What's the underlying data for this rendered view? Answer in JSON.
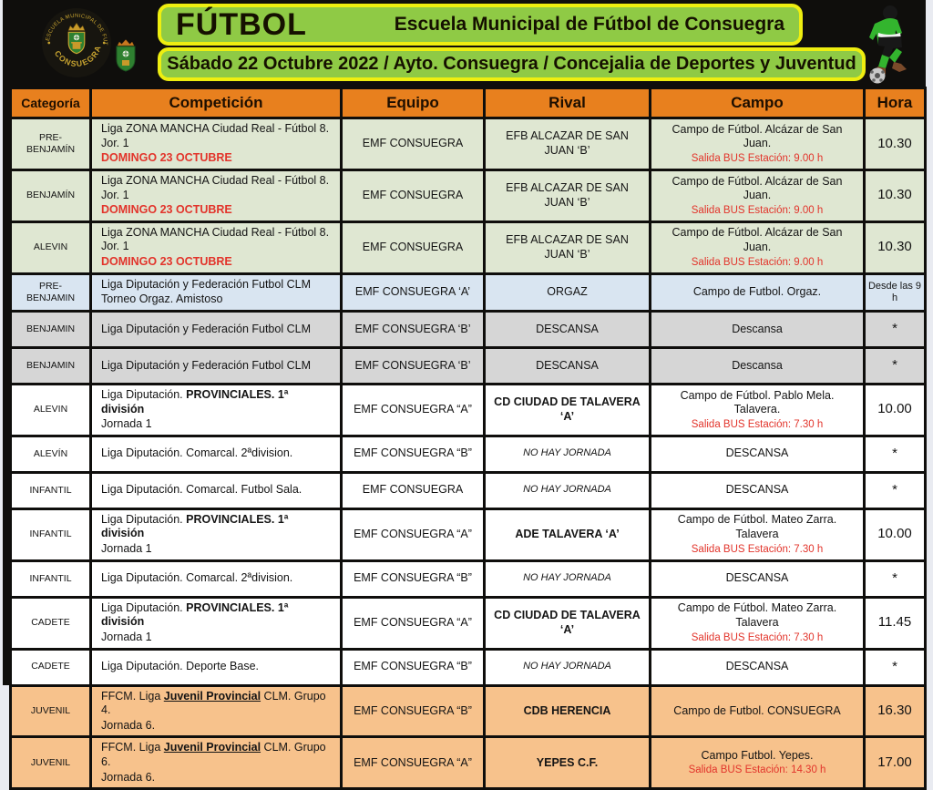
{
  "header": {
    "title": "FÚTBOL",
    "subtitle": "Escuela Municipal de Fútbol de Consuegra",
    "date_line": "Sábado 22 Octubre 2022 / Ayto. Consuegra / Concejalia de Deportes y Juventud",
    "logo_text_top": "ESCUELA MUNICIPAL DE FUTBOL",
    "logo_text_bottom": "CONSUEGRA",
    "box_color": "#8fca45",
    "box_border_color": "#eeee10"
  },
  "table": {
    "columns": [
      "Categoría",
      "Competición",
      "Equipo",
      "Rival",
      "Campo",
      "Hora"
    ],
    "header_bg": "#e8801e",
    "row_colors": {
      "green": "#dfe7d2",
      "blue": "#d9e5f1",
      "gray": "#d6d6d6",
      "white": "#ffffff",
      "orange": "#f7c28c"
    },
    "accent_red": "#e2342b",
    "rows": [
      {
        "categoria": "PRE-BENJAMÍN",
        "bg": "green",
        "comp_pre": "Liga  ZONA MANCHA Ciudad Real - Fútbol  8. Jor. 1",
        "comp_line2": "DOMINGO 23 OCTUBRE",
        "line2_red": true,
        "equipo": "EMF CONSUEGRA",
        "rival": "EFB ALCAZAR DE SAN JUAN ‘B’",
        "campo": "Campo de Fútbol. Alcázar de San Juan.",
        "campo_sub": "Salida BUS Estación:  9.00 h",
        "hora": "10.30"
      },
      {
        "categoria": "BENJAMÍN",
        "bg": "green",
        "comp_pre": "Liga  ZONA MANCHA Ciudad Real - Fútbol  8. Jor. 1",
        "comp_line2": "DOMINGO 23 OCTUBRE",
        "line2_red": true,
        "equipo": "EMF CONSUEGRA",
        "rival": "EFB ALCAZAR DE SAN JUAN ‘B’",
        "campo": "Campo de Fútbol. Alcázar de San Juan.",
        "campo_sub": "Salida BUS Estación:  9.00 h",
        "hora": "10.30"
      },
      {
        "categoria": "ALEVIN",
        "bg": "green",
        "comp_pre": "Liga  ZONA MANCHA Ciudad Real - Fútbol  8. Jor. 1",
        "comp_line2": "DOMINGO 23 OCTUBRE",
        "line2_red": true,
        "equipo": "EMF CONSUEGRA",
        "rival": "EFB ALCAZAR DE SAN JUAN ‘B’",
        "campo": "Campo de Fútbol. Alcázar de San Juan.",
        "campo_sub": "Salida BUS Estación:  9.00 h",
        "hora": "10.30"
      },
      {
        "categoria": "PRE-BENJAMIN",
        "bg": "blue",
        "comp_pre": "Liga Diputación y Federación Futbol CLM",
        "comp_line2": "Torneo Orgaz. Amistoso",
        "line2_red": false,
        "equipo": "EMF CONSUEGRA ‘A’",
        "rival": "ORGAZ",
        "campo": "Campo de Futbol. Orgaz.",
        "campo_sub": "",
        "hora": "Desde las 9 h",
        "hora_small": true
      },
      {
        "categoria": "BENJAMIN",
        "bg": "gray",
        "comp_pre": "Liga Diputación y Federación Futbol CLM",
        "equipo": "EMF CONSUEGRA ‘B’",
        "rival": "DESCANSA",
        "campo": "Descansa",
        "campo_sub": "",
        "hora": "*"
      },
      {
        "categoria": "BENJAMIN",
        "bg": "gray",
        "comp_pre": "Liga Diputación y Federación Futbol CLM",
        "equipo": "EMF CONSUEGRA ‘B’",
        "rival": "DESCANSA",
        "campo": "Descansa",
        "campo_sub": "",
        "hora": "*"
      },
      {
        "categoria": "ALEVIN",
        "bg": "white",
        "comp_pre": "Liga Diputación. ",
        "comp_bold": "PROVINCIALES. 1ª división",
        "comp_line2": "Jornada 1",
        "line2_red": false,
        "equipo": "EMF CONSUEGRA “A”",
        "rival": "CD CIUDAD DE TALAVERA ‘A’",
        "rival_bold": true,
        "campo": "Campo de Fútbol. Pablo Mela. Talavera.",
        "campo_sub": "Salida BUS Estación: 7.30 h",
        "hora": "10.00"
      },
      {
        "categoria": "ALEVÍN",
        "bg": "white",
        "comp_pre": "Liga Diputación. Comarcal. 2ªdivision.",
        "equipo": "EMF CONSUEGRA “B”",
        "rival": "NO HAY JORNADA",
        "rival_italic": true,
        "campo": "DESCANSA",
        "campo_sub": "",
        "hora": "*"
      },
      {
        "categoria": "INFANTIL",
        "bg": "white",
        "comp_pre": "Liga Diputación. Comarcal.  Futbol Sala.",
        "equipo": "EMF CONSUEGRA",
        "rival": "NO HAY JORNADA",
        "rival_italic": true,
        "campo": "DESCANSA",
        "campo_sub": "",
        "hora": "*"
      },
      {
        "categoria": "INFANTIL",
        "bg": "white",
        "comp_pre": "Liga Diputación. ",
        "comp_bold": "PROVINCIALES. 1ª división",
        "comp_line2": "Jornada 1",
        "line2_red": false,
        "equipo": "EMF CONSUEGRA “A”",
        "rival": "ADE TALAVERA ‘A’",
        "rival_bold": true,
        "campo": "Campo de Fútbol. Mateo Zarra. Talavera",
        "campo_sub": "Salida BUS Estación: 7.30 h",
        "hora": "10.00"
      },
      {
        "categoria": "INFANTIL",
        "bg": "white",
        "comp_pre": "Liga Diputación. Comarcal. 2ªdivision.",
        "equipo": "EMF CONSUEGRA “B”",
        "rival": "NO HAY JORNADA",
        "rival_italic": true,
        "campo": "DESCANSA",
        "campo_sub": "",
        "hora": "*"
      },
      {
        "categoria": "CADETE",
        "bg": "white",
        "comp_pre": "Liga Diputación. ",
        "comp_bold": "PROVINCIALES. 1ª división",
        "comp_line2": "Jornada 1",
        "line2_red": false,
        "equipo": "EMF CONSUEGRA “A”",
        "rival": "CD CIUDAD DE TALAVERA ‘A’",
        "rival_bold": true,
        "campo": "Campo de Fútbol. Mateo Zarra. Talavera",
        "campo_sub": "Salida BUS Estación: 7.30 h",
        "hora": "11.45"
      },
      {
        "categoria": "CADETE",
        "bg": "white",
        "comp_pre": "Liga Diputación. Deporte Base.",
        "equipo": "EMF CONSUEGRA “B”",
        "rival": "NO HAY JORNADA",
        "rival_italic": true,
        "campo": "DESCANSA",
        "campo_sub": "",
        "hora": "*"
      },
      {
        "categoria": "JUVENIL",
        "bg": "orange",
        "comp_pre": "FFCM. Liga ",
        "comp_bold": "Juvenil Provincial",
        "comp_bold_underline": true,
        "comp_post": " CLM.  Grupo 4.",
        "comp_line2": "Jornada 6.",
        "line2_red": false,
        "equipo": "EMF CONSUEGRA “B”",
        "rival": "CDB HERENCIA",
        "rival_bold": true,
        "campo": "Campo de Futbol. CONSUEGRA",
        "campo_sub": "",
        "hora": "16.30"
      },
      {
        "categoria": "JUVENIL",
        "bg": "orange",
        "comp_pre": "FFCM. Liga ",
        "comp_bold": "Juvenil Provincial",
        "comp_bold_underline": true,
        "comp_post": " CLM.  Grupo 6.",
        "comp_line2": "Jornada 6.",
        "line2_red": false,
        "equipo": "EMF CONSUEGRA “A”",
        "rival": "YEPES C.F.",
        "rival_bold": true,
        "campo": "Campo Futbol. Yepes.",
        "campo_sub": "Salida BUS Estación: 14.30 h",
        "hora": "17.00"
      }
    ]
  }
}
